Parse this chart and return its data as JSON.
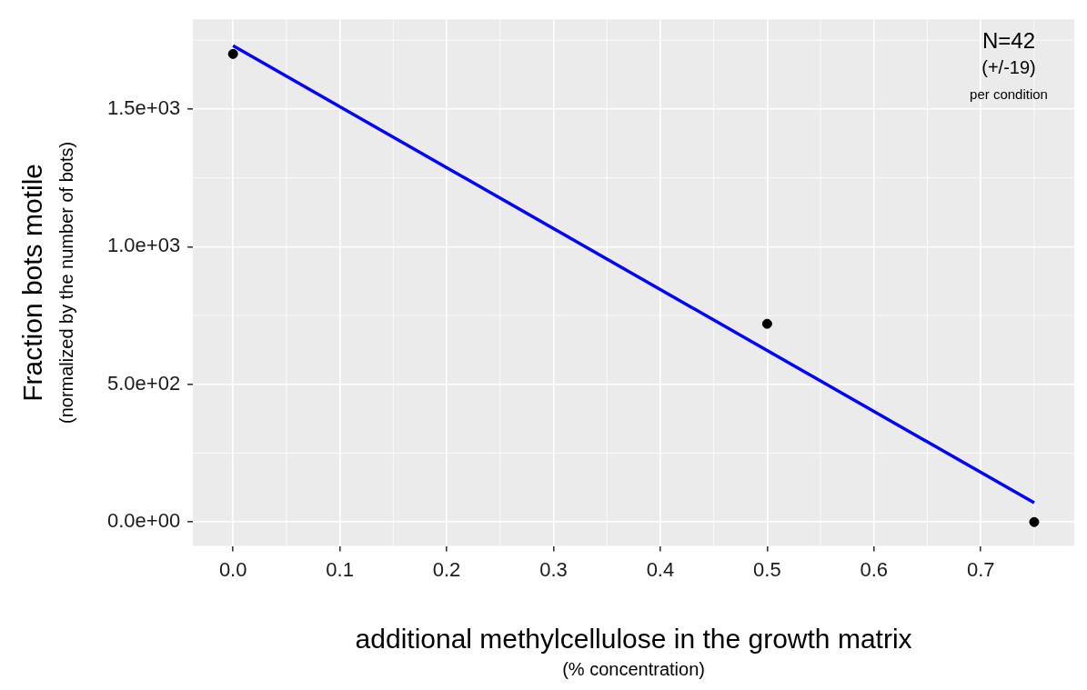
{
  "chart_data": {
    "type": "scatter",
    "xlabel": "additional methylcellulose in the growth matrix\n(% concentration)",
    "ylabel": "Fraction bots motile\n(normalized by the number of bots)",
    "annotations": [
      "N=42",
      "(+/-19)",
      "per condition"
    ],
    "series": [
      {
        "type": "scatter",
        "x": [
          0,
          0.5,
          0.75
        ],
        "values": [
          1700,
          720,
          0
        ],
        "color": "#000000",
        "marker": "circle"
      },
      {
        "type": "line",
        "x": [
          0,
          0.75
        ],
        "values": [
          1730,
          70
        ],
        "color": "#0000ff",
        "marker": "none"
      }
    ],
    "xlim": [
      -0.0375,
      0.7875
    ],
    "xticks": [
      {
        "value": 0,
        "label": "0.0"
      },
      0.1,
      0.2,
      0.3,
      0.4,
      0.5,
      0.6,
      0.7
    ],
    "ylim": [
      -87,
      1826
    ],
    "yticks": [
      {
        "value": 0,
        "label": "0.0e+00"
      },
      {
        "value": 500,
        "label": "5.0e+02"
      },
      {
        "value": 1000,
        "label": "1.0e+03"
      },
      {
        "value": 1500,
        "label": "1.5e+03"
      }
    ],
    "grid": true,
    "legend": false
  }
}
